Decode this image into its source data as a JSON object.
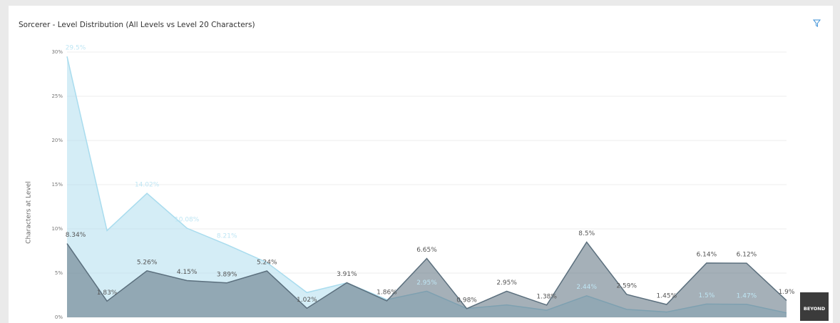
{
  "chart_data": {
    "type": "area",
    "title": "Sorcerer - Level Distribution (All Levels vs Level 20 Characters)",
    "y_label": "Characters at Level",
    "watermark": "BEYOND",
    "categories": [
      null,
      null,
      null,
      null,
      null,
      null,
      null,
      null,
      null,
      null,
      null,
      null,
      null,
      null,
      null,
      null,
      null,
      null,
      null
    ],
    "ylim": [
      0,
      30
    ],
    "yticks": [
      {
        "value": 0,
        "label": "0%"
      },
      {
        "value": 5,
        "label": "5%"
      },
      {
        "value": 10,
        "label": "10%"
      },
      {
        "value": 15,
        "label": "15%"
      },
      {
        "value": 20,
        "label": "20%"
      },
      {
        "value": 25,
        "label": "25%"
      },
      {
        "value": 30,
        "label": "30%"
      }
    ],
    "grid": true,
    "series": [
      {
        "color": "#a9dcee",
        "label_color": "#bfe6f4",
        "values": [
          29.5,
          9.8,
          14.02,
          10.08,
          8.21,
          6.2,
          2.8,
          3.9,
          2.0,
          2.95,
          1.0,
          1.4,
          0.8,
          2.44,
          0.9,
          0.6,
          1.5,
          1.47,
          0.5
        ],
        "value_labels": [
          "29.5%",
          null,
          "14.02%",
          "10.08%",
          "8.21%",
          null,
          null,
          null,
          null,
          "2.95%",
          null,
          null,
          null,
          "2.44%",
          null,
          null,
          "1.5%",
          "1.47%",
          null
        ]
      },
      {
        "color": "#5b6f7d",
        "label_color": "#555555",
        "values": [
          8.34,
          1.83,
          5.26,
          4.15,
          3.89,
          5.24,
          1.02,
          3.91,
          1.86,
          6.65,
          0.98,
          2.95,
          1.38,
          8.5,
          2.59,
          1.45,
          6.14,
          6.12,
          1.9
        ],
        "value_labels": [
          "8.34%",
          "1.83%",
          "5.26%",
          "4.15%",
          "3.89%",
          "5.24%",
          "1.02%",
          "3.91%",
          "1.86%",
          "6.65%",
          "0.98%",
          "2.95%",
          "1.38%",
          "8.5%",
          "2.59%",
          "1.45%",
          "6.14%",
          "6.12%",
          "1.9%"
        ]
      }
    ]
  }
}
